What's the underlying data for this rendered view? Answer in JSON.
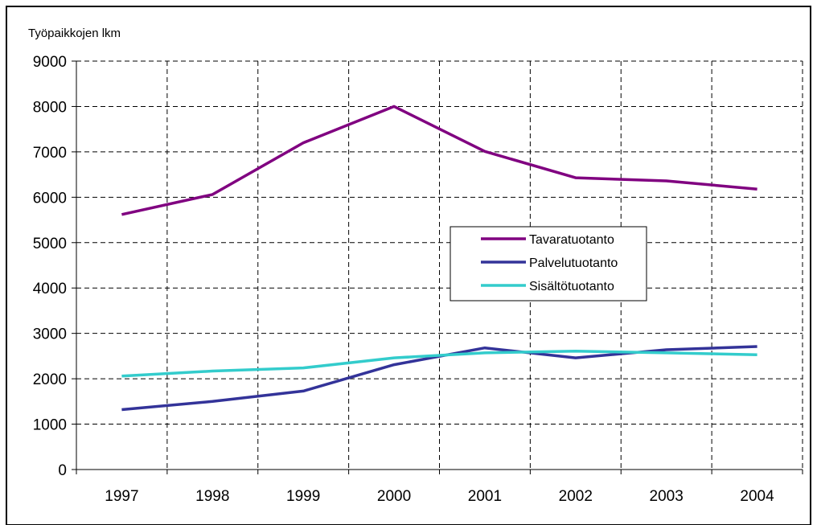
{
  "chart_data": {
    "type": "line",
    "title": "",
    "xlabel": "",
    "ylabel": "Työpaikkojen lkm",
    "categories": [
      "1997",
      "1998",
      "1999",
      "2000",
      "2001",
      "2002",
      "2003",
      "2004"
    ],
    "ylim": [
      0,
      9000
    ],
    "yticks": [
      "0",
      "1000",
      "2000",
      "3000",
      "4000",
      "5000",
      "6000",
      "7000",
      "8000",
      "9000"
    ],
    "grid": true,
    "legend_position": "center-right",
    "series": [
      {
        "name": "Tavaratuotanto",
        "color": "#800080",
        "values": [
          5620,
          6060,
          7200,
          8000,
          7010,
          6430,
          6360,
          6180
        ]
      },
      {
        "name": "Palvelutuotanto",
        "color": "#333399",
        "values": [
          1320,
          1500,
          1730,
          2310,
          2680,
          2460,
          2640,
          2710
        ]
      },
      {
        "name": "Sisältötuotanto",
        "color": "#33CCCC",
        "values": [
          2060,
          2170,
          2240,
          2460,
          2570,
          2610,
          2570,
          2530
        ]
      }
    ]
  }
}
